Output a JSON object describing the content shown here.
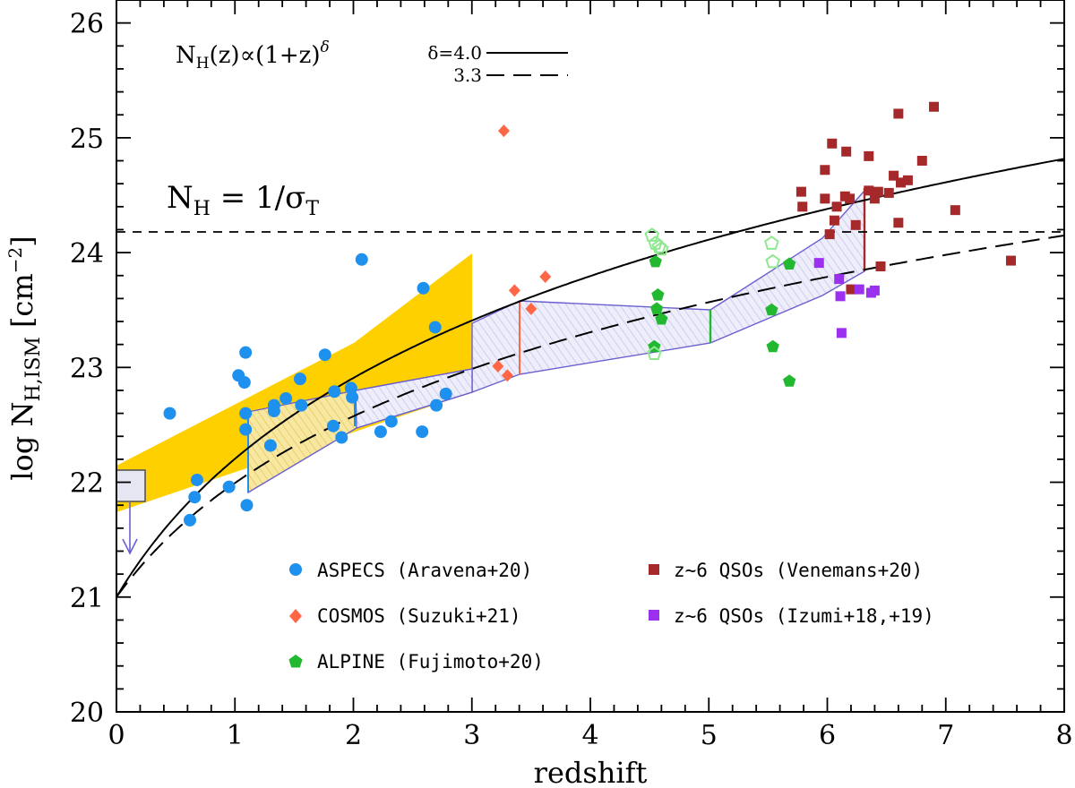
{
  "chart_data": {
    "type": "scatter",
    "xlabel": "redshift",
    "ylabel": "log N",
    "ylabel_sub": "H,ISM",
    "ylabel_unit": "[cm",
    "ylabel_unit_sup": "−2",
    "ylabel_unit_close": "]",
    "xlim": [
      0,
      8
    ],
    "ylim": [
      20,
      26.2
    ],
    "x_ticks": [
      "0",
      "1",
      "2",
      "3",
      "4",
      "5",
      "6",
      "7",
      "8"
    ],
    "y_ticks": [
      "20",
      "21",
      "22",
      "23",
      "24",
      "25",
      "26"
    ],
    "annotations": {
      "scaling_law": {
        "prefix": "N",
        "sub": "H",
        "rest": "(z)∝(1+z)",
        "sup": "δ"
      },
      "thomson": {
        "prefix": "N",
        "sub": "H",
        "rest": " = 1/σ",
        "sub2": "T"
      },
      "thomson_level": 24.18
    },
    "model_curves": [
      {
        "label": "δ=4.0",
        "delta": 4.0,
        "style": "solid",
        "log_n0": 21
      },
      {
        "label": "3.3",
        "delta": 3.3,
        "style": "dashed",
        "log_n0": 21
      }
    ],
    "series": [
      {
        "name": "ASPECS (Aravena+20)",
        "marker": "circle",
        "color": "#1e90ee",
        "points": [
          [
            0.45,
            22.6
          ],
          [
            0.62,
            21.67
          ],
          [
            0.66,
            21.87
          ],
          [
            0.68,
            22.02
          ],
          [
            0.95,
            21.96
          ],
          [
            1.03,
            22.93
          ],
          [
            1.08,
            22.87
          ],
          [
            1.09,
            23.13
          ],
          [
            1.09,
            22.6
          ],
          [
            1.09,
            22.46
          ],
          [
            1.1,
            21.8
          ],
          [
            1.3,
            22.32
          ],
          [
            1.33,
            22.67
          ],
          [
            1.33,
            22.62
          ],
          [
            1.43,
            22.73
          ],
          [
            1.55,
            22.9
          ],
          [
            1.56,
            22.67
          ],
          [
            1.76,
            23.11
          ],
          [
            1.83,
            22.49
          ],
          [
            1.84,
            22.79
          ],
          [
            1.9,
            22.39
          ],
          [
            1.98,
            22.82
          ],
          [
            1.99,
            22.74
          ],
          [
            2.23,
            22.44
          ],
          [
            2.32,
            22.53
          ],
          [
            2.07,
            23.94
          ],
          [
            2.58,
            22.44
          ],
          [
            2.59,
            23.69
          ],
          [
            2.69,
            23.35
          ],
          [
            2.7,
            22.67
          ],
          [
            2.78,
            22.77
          ]
        ]
      },
      {
        "name": "COSMOS (Suzuki+21)",
        "marker": "diamond",
        "color": "#ff6645",
        "points": [
          [
            3.27,
            25.06
          ],
          [
            3.22,
            23.01
          ],
          [
            3.3,
            22.93
          ],
          [
            3.36,
            23.67
          ],
          [
            3.5,
            23.51
          ],
          [
            3.62,
            23.79
          ]
        ]
      },
      {
        "name": "ALPINE (Fujimoto+20)",
        "marker": "pentagon",
        "color": "#22b830",
        "points": [
          [
            4.55,
            23.92
          ],
          [
            4.56,
            23.51
          ],
          [
            4.57,
            23.63
          ],
          [
            4.6,
            23.42
          ],
          [
            4.54,
            23.18
          ],
          [
            5.53,
            23.5
          ],
          [
            5.54,
            23.18
          ],
          [
            5.68,
            23.9
          ],
          [
            5.68,
            22.88
          ]
        ]
      },
      {
        "name": "ALPINE upper limits",
        "marker": "pentagon-open",
        "color": "#8fe88f",
        "points": [
          [
            4.52,
            24.15
          ],
          [
            4.55,
            24.08
          ],
          [
            4.58,
            24.05
          ],
          [
            4.6,
            24.03
          ],
          [
            4.54,
            23.12
          ],
          [
            5.53,
            24.08
          ],
          [
            5.54,
            23.92
          ]
        ]
      },
      {
        "name": "z~6 QSOs (Venemans+20)",
        "marker": "square",
        "color": "#a5282a",
        "points": [
          [
            5.78,
            24.53
          ],
          [
            5.79,
            24.4
          ],
          [
            5.98,
            24.72
          ],
          [
            5.98,
            24.47
          ],
          [
            6.02,
            24.16
          ],
          [
            6.04,
            24.95
          ],
          [
            6.06,
            24.28
          ],
          [
            6.08,
            24.4
          ],
          [
            6.15,
            24.49
          ],
          [
            6.16,
            24.88
          ],
          [
            6.19,
            24.47
          ],
          [
            6.24,
            24.24
          ],
          [
            6.35,
            24.84
          ],
          [
            6.35,
            24.54
          ],
          [
            6.4,
            24.47
          ],
          [
            6.43,
            24.53
          ],
          [
            6.45,
            23.88
          ],
          [
            6.52,
            24.52
          ],
          [
            6.56,
            24.67
          ],
          [
            6.6,
            25.21
          ],
          [
            6.6,
            24.26
          ],
          [
            6.62,
            24.61
          ],
          [
            6.68,
            24.63
          ],
          [
            6.8,
            24.8
          ],
          [
            6.9,
            25.27
          ],
          [
            7.08,
            24.37
          ],
          [
            7.55,
            23.93
          ],
          [
            6.2,
            23.68
          ]
        ]
      },
      {
        "name": "z~6 QSOs (Izumi+18,+19)",
        "marker": "square",
        "color": "#9b30ef",
        "points": [
          [
            5.93,
            23.91
          ],
          [
            6.1,
            23.77
          ],
          [
            6.11,
            23.62
          ],
          [
            6.12,
            23.3
          ],
          [
            6.27,
            23.68
          ],
          [
            6.37,
            23.65
          ],
          [
            6.4,
            23.67
          ]
        ]
      }
    ]
  }
}
